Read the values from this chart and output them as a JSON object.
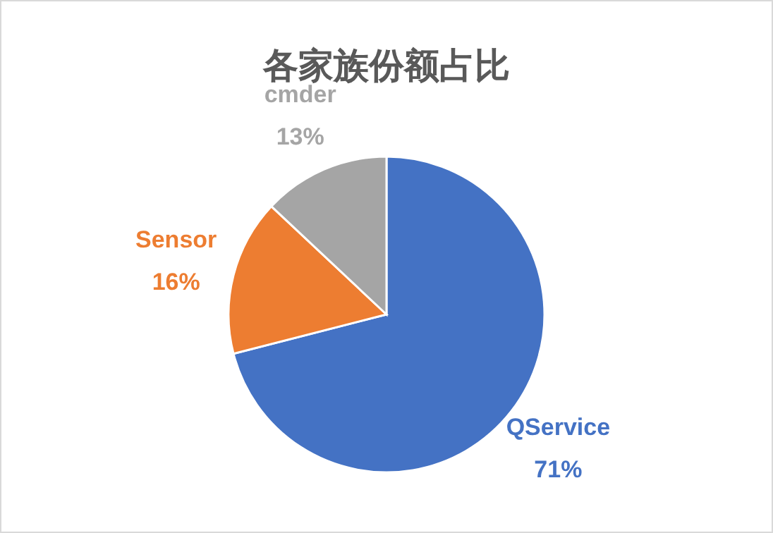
{
  "chart_data": {
    "type": "pie",
    "title": "各家族份额占比",
    "categories": [
      "QService",
      "Sensor",
      "cmder"
    ],
    "values": [
      71,
      16,
      13
    ],
    "value_labels": [
      "71%",
      "16%",
      "13%"
    ],
    "colors": [
      "#4472c4",
      "#ed7d31",
      "#a5a5a5"
    ],
    "legend": false
  }
}
